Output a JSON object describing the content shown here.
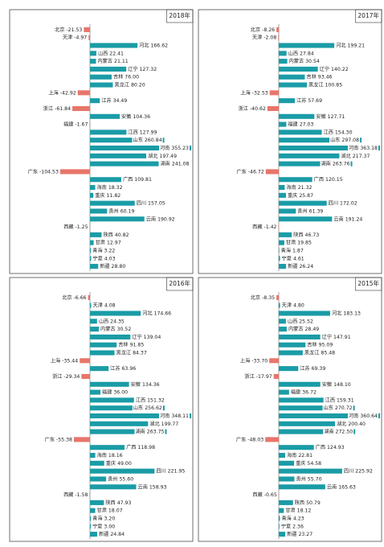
{
  "chart_data": [
    {
      "type": "bar",
      "orientation": "horizontal",
      "title": "2018年",
      "color": "#1a9ca6",
      "negative_color": "#e8756a",
      "categories": [
        "北京",
        "天津",
        "河北",
        "山西",
        "内蒙古",
        "辽宁",
        "吉林",
        "黑龙江",
        "上海",
        "江苏",
        "浙江",
        "安徽",
        "福建",
        "江西",
        "山东",
        "河南",
        "湖北",
        "湖南",
        "广东",
        "广西",
        "海南",
        "重庆",
        "四川",
        "贵州",
        "云南",
        "西藏",
        "陕西",
        "甘肃",
        "青海",
        "宁夏",
        "新疆"
      ],
      "values": [
        -21.53,
        -4.97,
        166.62,
        22.41,
        21.11,
        127.32,
        76,
        80.2,
        -42.92,
        34.49,
        -61.84,
        104.36,
        -1.67,
        127.99,
        260.84,
        355.23,
        197.49,
        241.08,
        -104.53,
        109.81,
        18.32,
        11.82,
        157.05,
        60.19,
        190.92,
        -1.25,
        40.82,
        12.97,
        3.22,
        4.03,
        28.8
      ],
      "value_labels": [
        "-21.53",
        "-4.97",
        "166.62",
        "22.41",
        "21.11",
        "127.32",
        "76.00",
        "80.20",
        "-42.92",
        "34.49",
        "-61.84",
        "104.36",
        "-1.67",
        "127.99",
        "260.84",
        "355.23",
        "197.49",
        "241.08",
        "-104.53",
        "109.81",
        "18.32",
        "11.82",
        "157.05",
        "60.19",
        "190.92",
        "-1.25",
        "40.82",
        "12.97",
        "3.22",
        "4.03",
        "28.80"
      ]
    },
    {
      "type": "bar",
      "orientation": "horizontal",
      "title": "2017年",
      "color": "#1a9ca6",
      "negative_color": "#e8756a",
      "categories": [
        "北京",
        "天津",
        "河北",
        "山西",
        "内蒙古",
        "辽宁",
        "吉林",
        "黑龙江",
        "上海",
        "江苏",
        "浙江",
        "安徽",
        "福建",
        "江西",
        "山东",
        "河南",
        "湖北",
        "湖南",
        "广东",
        "广西",
        "海南",
        "重庆",
        "四川",
        "贵州",
        "云南",
        "西藏",
        "陕西",
        "甘肃",
        "青海",
        "宁夏",
        "新疆"
      ],
      "values": [
        -8.26,
        -2.08,
        199.21,
        27.84,
        30.54,
        140.22,
        93.46,
        100.85,
        -32.53,
        57.69,
        -40.62,
        127.71,
        27.03,
        154.3,
        297.08,
        363.18,
        217.37,
        263.76,
        -46.72,
        120.15,
        21.32,
        25.87,
        172.02,
        61.39,
        191.24,
        -1.42,
        46.73,
        19.85,
        1.87,
        4.61,
        26.24
      ],
      "value_labels": [
        "-8.26",
        "-2.08",
        "199.21",
        "27.84",
        "30.54",
        "140.22",
        "93.46",
        "100.85",
        "-32.53",
        "57.69",
        "-40.62",
        "127.71",
        "27.03",
        "154.30",
        "297.08",
        "363.18",
        "217.37",
        "263.76",
        "-46.72",
        "120.15",
        "21.32",
        "25.87",
        "172.02",
        "61.39",
        "191.24",
        "-1.42",
        "46.73",
        "19.85",
        "1.87",
        "4.61",
        "26.24"
      ]
    },
    {
      "type": "bar",
      "orientation": "horizontal",
      "title": "2016年",
      "color": "#1a9ca6",
      "negative_color": "#e8756a",
      "categories": [
        "北京",
        "天津",
        "河北",
        "山西",
        "内蒙古",
        "辽宁",
        "吉林",
        "黑龙江",
        "上海",
        "江苏",
        "浙江",
        "安徽",
        "福建",
        "江西",
        "山东",
        "河南",
        "湖北",
        "湖南",
        "广东",
        "广西",
        "海南",
        "重庆",
        "四川",
        "贵州",
        "云南",
        "西藏",
        "陕西",
        "甘肃",
        "青海",
        "宁夏",
        "新疆"
      ],
      "values": [
        -6.66,
        4.08,
        174.66,
        24.35,
        30.52,
        139.04,
        91.85,
        84.37,
        -35.44,
        63.96,
        -29.34,
        134.36,
        36,
        151.32,
        256.62,
        348.11,
        199.77,
        263.75,
        -55.38,
        118.98,
        18.16,
        49,
        221.95,
        55.6,
        158.93,
        -1.58,
        47.93,
        18.07,
        3.2,
        3,
        24.84
      ],
      "value_labels": [
        "-6.66",
        "4.08",
        "174.66",
        "24.35",
        "30.52",
        "139.04",
        "91.85",
        "84.37",
        "-35.44",
        "63.96",
        "-29.34",
        "134.36",
        "36.00",
        "151.32",
        "256.62",
        "348.11",
        "199.77",
        "263.75",
        "-55.38",
        "118.98",
        "18.16",
        "49.00",
        "221.95",
        "55.60",
        "158.93",
        "-1.58",
        "47.93",
        "18.07",
        "3.20",
        "3.00",
        "24.84"
      ]
    },
    {
      "type": "bar",
      "orientation": "horizontal",
      "title": "2015年",
      "color": "#1a9ca6",
      "negative_color": "#e8756a",
      "categories": [
        "北京",
        "天津",
        "河北",
        "山西",
        "内蒙古",
        "辽宁",
        "吉林",
        "黑龙江",
        "上海",
        "江苏",
        "浙江",
        "安徽",
        "福建",
        "江西",
        "山东",
        "河南",
        "湖北",
        "湖南",
        "广东",
        "广西",
        "海南",
        "重庆",
        "四川",
        "贵州",
        "云南",
        "西藏",
        "陕西",
        "甘肃",
        "青海",
        "宁夏",
        "新疆"
      ],
      "values": [
        -8.35,
        4.8,
        183.13,
        25.52,
        28.49,
        147.91,
        95.09,
        85.48,
        -33.7,
        69.39,
        -17.97,
        148.1,
        36.72,
        159.31,
        270.72,
        360.64,
        200.4,
        272.5,
        -48.03,
        124.93,
        22.81,
        54.58,
        225.92,
        55.7,
        165.63,
        -0.65,
        50.79,
        18.12,
        4.23,
        2.36,
        23.27
      ],
      "value_labels": [
        "-8.35",
        "4.80",
        "183.13",
        "25.52",
        "28.49",
        "147.91",
        "95.09",
        "85.48",
        "-33.70",
        "69.39",
        "-17.97",
        "148.10",
        "36.72",
        "159.31",
        "270.72",
        "360.64",
        "200.40",
        "272.50",
        "-48.03",
        "124.93",
        "22.81",
        "54.58",
        "225.92",
        "55.70",
        "165.63",
        "-0.65",
        "50.79",
        "18.12",
        "4.23",
        "2.36",
        "23.27"
      ]
    }
  ]
}
